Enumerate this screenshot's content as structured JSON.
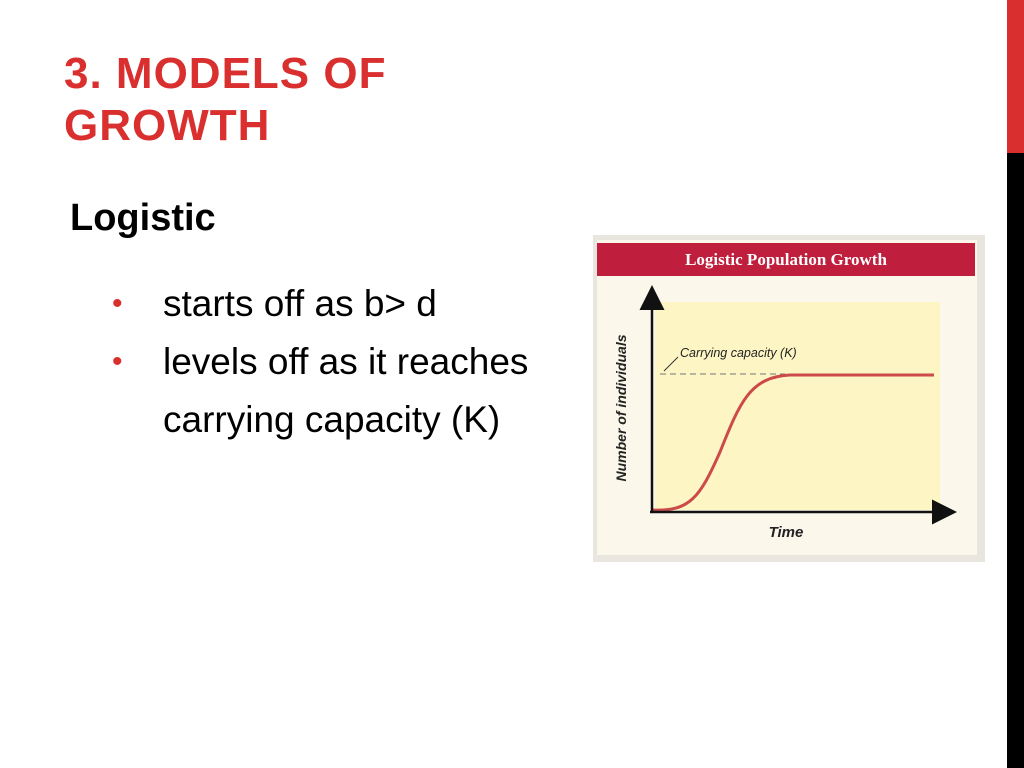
{
  "header": {
    "title": "3. MODELS OF GROWTH"
  },
  "body": {
    "heading": "Logistic",
    "bullets": [
      "starts off as b> d",
      "levels off as it reaches carrying capacity (K)"
    ]
  },
  "figure": {
    "title": "Logistic Population Growth",
    "annotation": "Carrying capacity (K)",
    "y_axis_label": "Number of individuals",
    "x_axis_label": "Time"
  }
}
